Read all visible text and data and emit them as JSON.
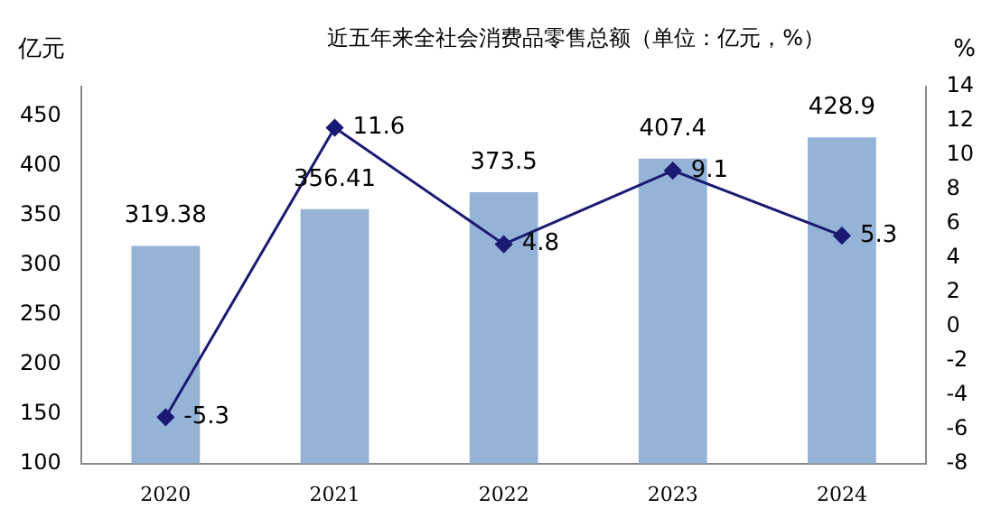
{
  "chart_data": {
    "type": "bar",
    "title": "近五年来全社会消费品零售总额（单位：亿元，%）",
    "ylabel": "亿元",
    "y2label": "%",
    "categories": [
      "2020",
      "2021",
      "2022",
      "2023",
      "2024"
    ],
    "series": [
      {
        "color": "#95b3d7",
        "values": [
          319.38,
          356.41,
          373.5,
          407.4,
          428.9
        ]
      },
      {
        "type": "line",
        "axis": "y2",
        "color": "#1a1a72",
        "marker": "diamond",
        "values": [
          -5.3,
          11.6,
          4.8,
          9.1,
          5.3
        ]
      }
    ],
    "ylim": [
      100,
      480
    ],
    "yticks": [
      100,
      150,
      200,
      250,
      300,
      350,
      400,
      450
    ],
    "y2lim": [
      -8,
      14
    ],
    "y2ticks": [
      -8,
      -6,
      -4,
      -2,
      0,
      2,
      4,
      6,
      8,
      10,
      12,
      14
    ],
    "data_labels": true,
    "grid": false,
    "legend": false
  }
}
